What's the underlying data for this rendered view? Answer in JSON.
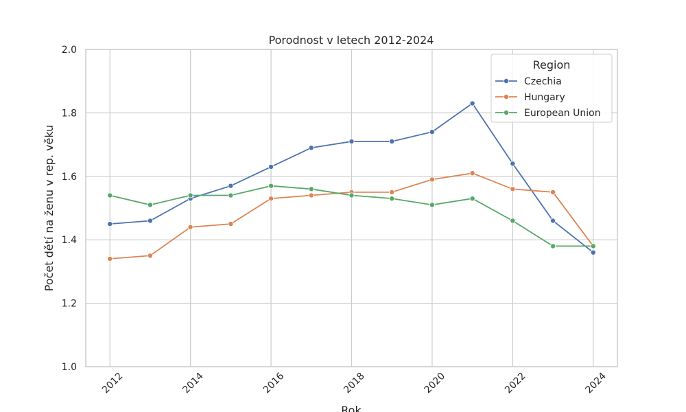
{
  "chart_data": {
    "type": "line",
    "title": "Porodnost v letech 2012-2024",
    "xlabel": "Rok",
    "ylabel": "Počet dětí na ženu v rep. věku",
    "x": [
      2012,
      2013,
      2014,
      2015,
      2016,
      2017,
      2018,
      2019,
      2020,
      2021,
      2022,
      2023,
      2024
    ],
    "xlim": [
      2011.4,
      2024.6
    ],
    "ylim": [
      1.0,
      2.0
    ],
    "xticks": [
      2012,
      2014,
      2016,
      2018,
      2020,
      2022,
      2024
    ],
    "yticks": [
      1.0,
      1.2,
      1.4,
      1.6,
      1.8,
      2.0
    ],
    "grid": true,
    "legend": {
      "title": "Region",
      "placement": "top-right"
    },
    "series": [
      {
        "name": "Czechia",
        "color": "#4c72b0",
        "values": [
          1.45,
          1.46,
          1.53,
          1.57,
          1.63,
          1.69,
          1.71,
          1.71,
          1.74,
          1.83,
          1.64,
          1.46,
          1.36
        ]
      },
      {
        "name": "Hungary",
        "color": "#dd8452",
        "values": [
          1.34,
          1.35,
          1.44,
          1.45,
          1.53,
          1.54,
          1.55,
          1.55,
          1.59,
          1.61,
          1.56,
          1.55,
          1.38
        ]
      },
      {
        "name": "European Union",
        "color": "#55a868",
        "values": [
          1.54,
          1.51,
          1.54,
          1.54,
          1.57,
          1.56,
          1.54,
          1.53,
          1.51,
          1.53,
          1.46,
          1.38,
          1.38
        ]
      }
    ]
  }
}
